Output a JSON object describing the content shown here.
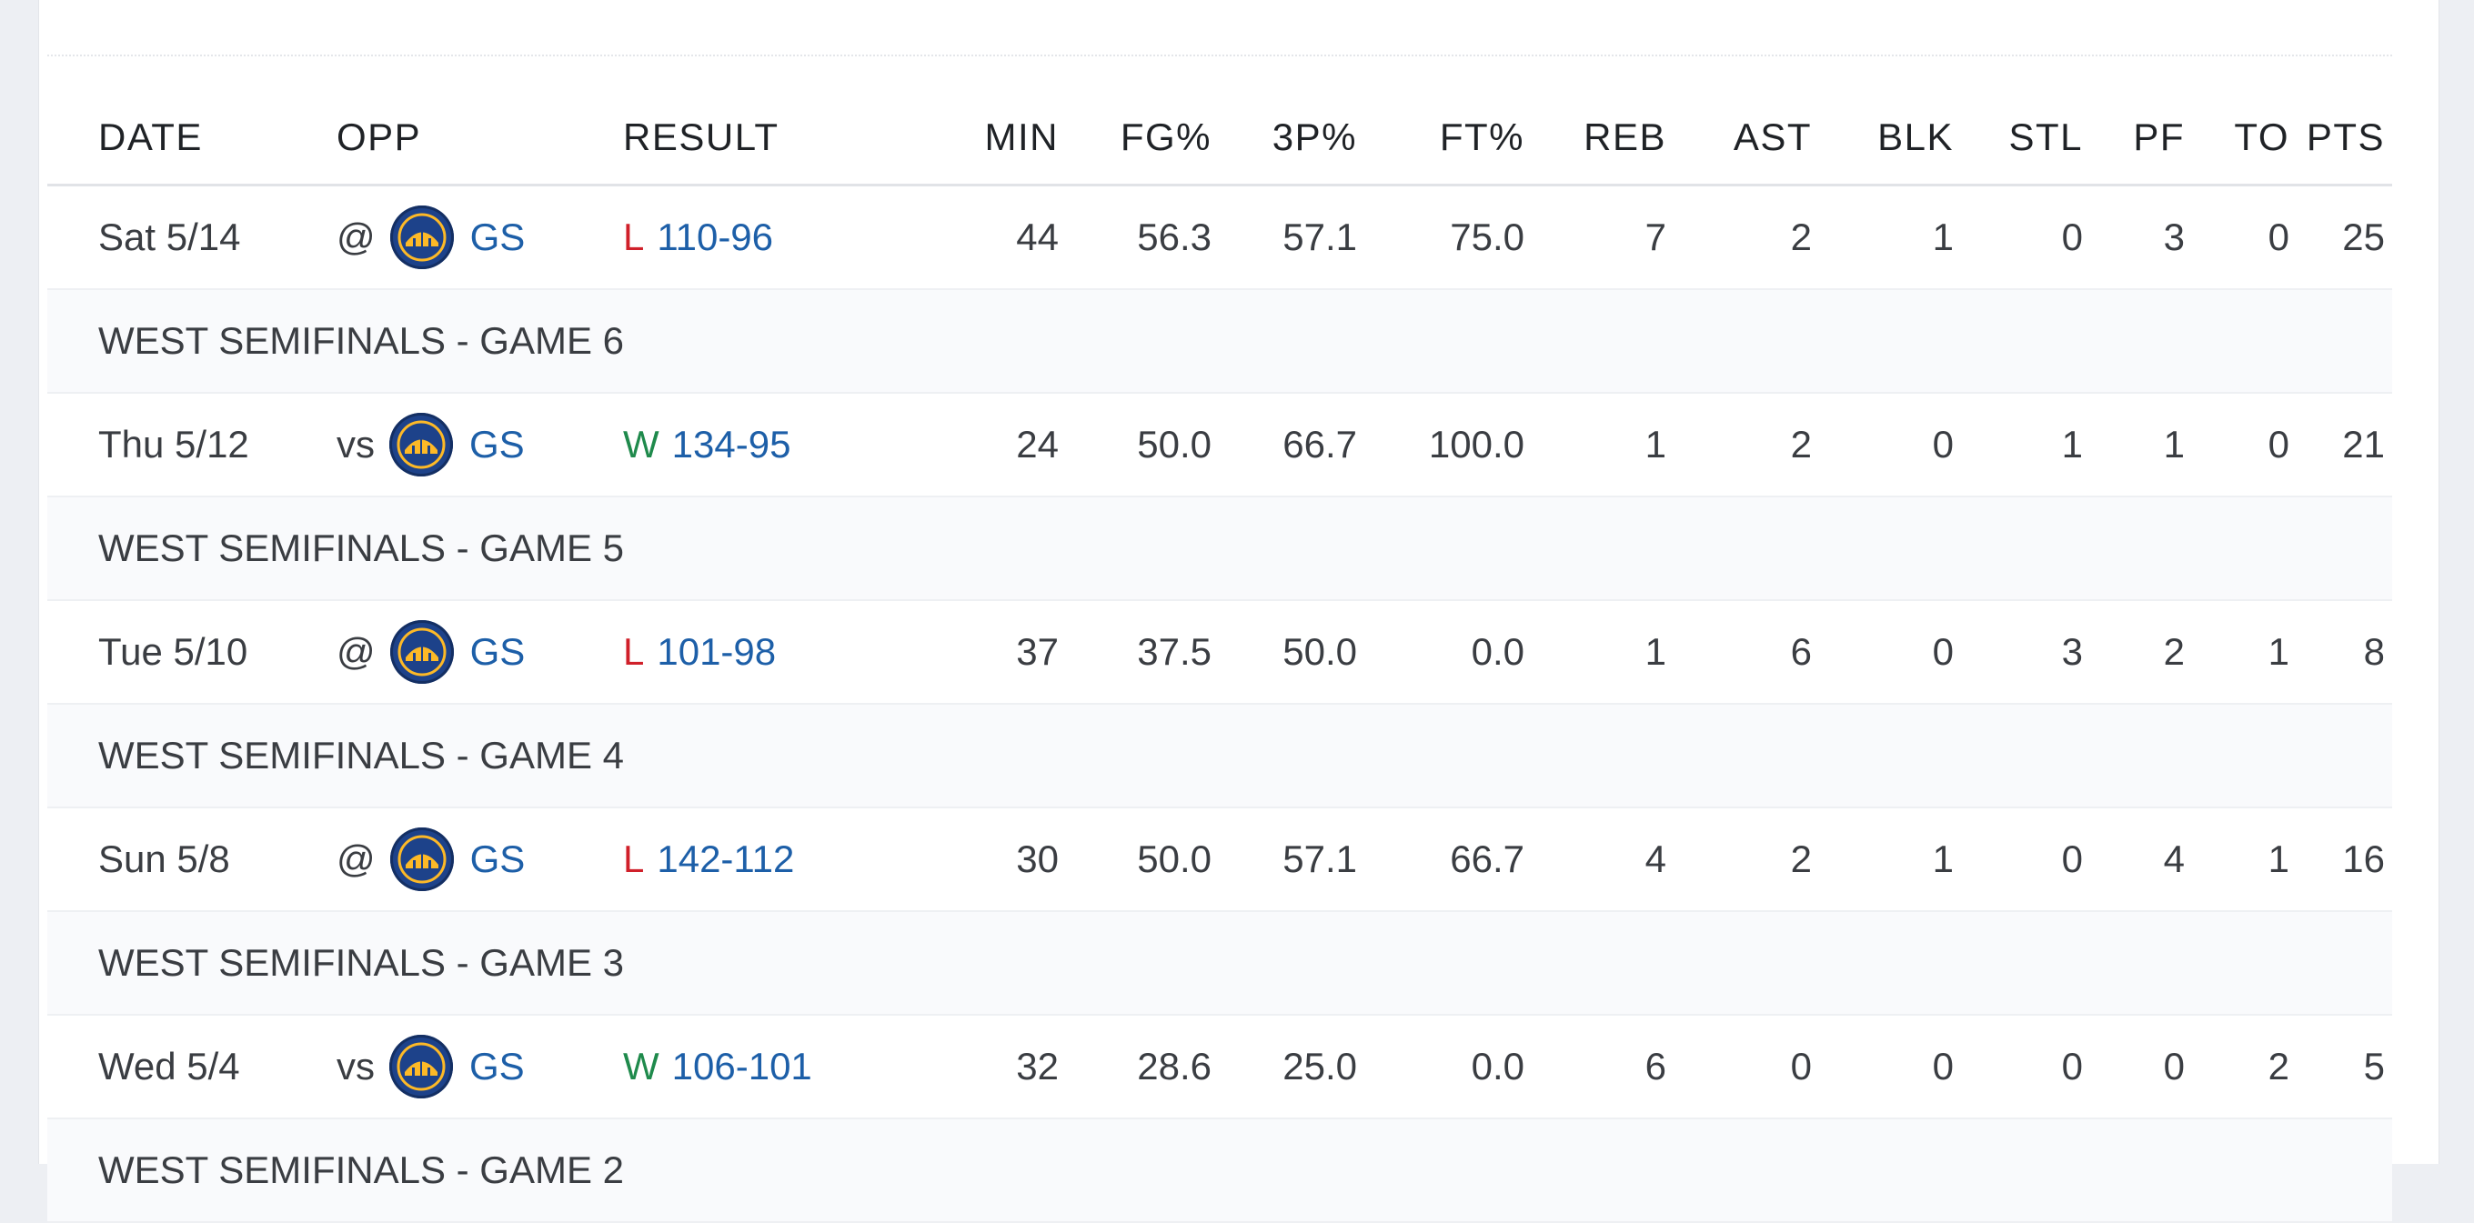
{
  "columns": [
    "DATE",
    "OPP",
    "RESULT",
    "MIN",
    "FG%",
    "3P%",
    "FT%",
    "REB",
    "AST",
    "BLK",
    "STL",
    "PF",
    "TO",
    "PTS"
  ],
  "colors": {
    "loss": "#d0202a",
    "win": "#1f8a4c",
    "link": "#1d5fa8",
    "team_logo": "#1d428a",
    "team_logo_accent": "#fdb927"
  },
  "rows": [
    {
      "game": {
        "date": "Sat 5/14",
        "prefix": "@",
        "team": "GS",
        "logo_icon": "warriors-logo-icon",
        "outcome": "L",
        "score": "110-96",
        "min": "44",
        "fg": "56.3",
        "tp": "57.1",
        "ft": "75.0",
        "reb": "7",
        "ast": "2",
        "blk": "1",
        "stl": "0",
        "pf": "3",
        "to": "0",
        "pts": "25"
      },
      "label": "WEST SEMIFINALS - GAME 6"
    },
    {
      "game": {
        "date": "Thu 5/12",
        "prefix": "vs",
        "team": "GS",
        "logo_icon": "warriors-logo-icon",
        "outcome": "W",
        "score": "134-95",
        "min": "24",
        "fg": "50.0",
        "tp": "66.7",
        "ft": "100.0",
        "reb": "1",
        "ast": "2",
        "blk": "0",
        "stl": "1",
        "pf": "1",
        "to": "0",
        "pts": "21"
      },
      "label": "WEST SEMIFINALS - GAME 5"
    },
    {
      "game": {
        "date": "Tue 5/10",
        "prefix": "@",
        "team": "GS",
        "logo_icon": "warriors-logo-icon",
        "outcome": "L",
        "score": "101-98",
        "min": "37",
        "fg": "37.5",
        "tp": "50.0",
        "ft": "0.0",
        "reb": "1",
        "ast": "6",
        "blk": "0",
        "stl": "3",
        "pf": "2",
        "to": "1",
        "pts": "8"
      },
      "label": "WEST SEMIFINALS - GAME 4"
    },
    {
      "game": {
        "date": "Sun 5/8",
        "prefix": "@",
        "team": "GS",
        "logo_icon": "warriors-logo-icon",
        "outcome": "L",
        "score": "142-112",
        "min": "30",
        "fg": "50.0",
        "tp": "57.1",
        "ft": "66.7",
        "reb": "4",
        "ast": "2",
        "blk": "1",
        "stl": "0",
        "pf": "4",
        "to": "1",
        "pts": "16"
      },
      "label": "WEST SEMIFINALS - GAME 3"
    },
    {
      "game": {
        "date": "Wed 5/4",
        "prefix": "vs",
        "team": "GS",
        "logo_icon": "warriors-logo-icon",
        "outcome": "W",
        "score": "106-101",
        "min": "32",
        "fg": "28.6",
        "tp": "25.0",
        "ft": "0.0",
        "reb": "6",
        "ast": "0",
        "blk": "0",
        "stl": "0",
        "pf": "0",
        "to": "2",
        "pts": "5"
      },
      "label": "WEST SEMIFINALS - GAME 2"
    }
  ]
}
